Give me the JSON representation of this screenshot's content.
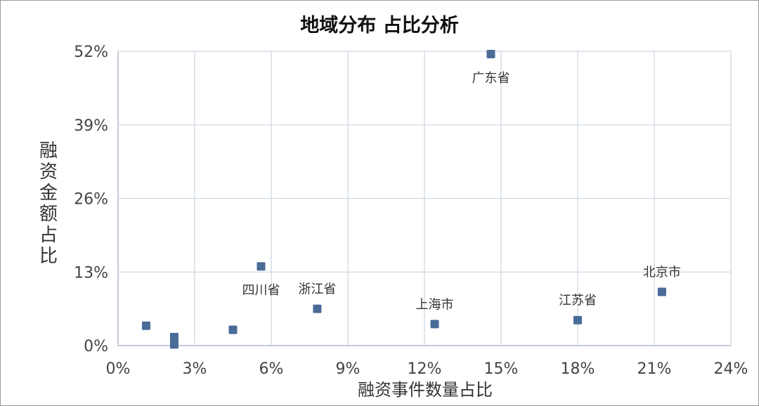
{
  "chart_data": {
    "type": "scatter",
    "title": "地域分布 占比分析",
    "xlabel": "融资事件数量占比",
    "ylabel": "融资金额占比",
    "xlim": [
      0,
      24
    ],
    "ylim": [
      0,
      52
    ],
    "xticks": [
      "0%",
      "3%",
      "6%",
      "9%",
      "12%",
      "15%",
      "18%",
      "21%",
      "24%"
    ],
    "yticks": [
      "0%",
      "13%",
      "26%",
      "39%",
      "52%"
    ],
    "grid": true,
    "marker_color": "#4a6b97",
    "points": [
      {
        "x": 14.6,
        "y": 51.5,
        "label": "广东省",
        "label_pos": "below"
      },
      {
        "x": 21.3,
        "y": 9.5,
        "label": "北京市",
        "label_pos": "above"
      },
      {
        "x": 18.0,
        "y": 4.5,
        "label": "江苏省",
        "label_pos": "above"
      },
      {
        "x": 12.4,
        "y": 3.8,
        "label": "上海市",
        "label_pos": "above"
      },
      {
        "x": 7.8,
        "y": 6.5,
        "label": "浙江省",
        "label_pos": "above"
      },
      {
        "x": 5.6,
        "y": 14.0,
        "label": "四川省",
        "label_pos": "below"
      },
      {
        "x": 1.1,
        "y": 3.5,
        "label": ""
      },
      {
        "x": 2.2,
        "y": 1.5,
        "label": ""
      },
      {
        "x": 2.2,
        "y": 0.8,
        "label": ""
      },
      {
        "x": 2.2,
        "y": 0.2,
        "label": ""
      },
      {
        "x": 4.5,
        "y": 2.8,
        "label": ""
      }
    ]
  }
}
